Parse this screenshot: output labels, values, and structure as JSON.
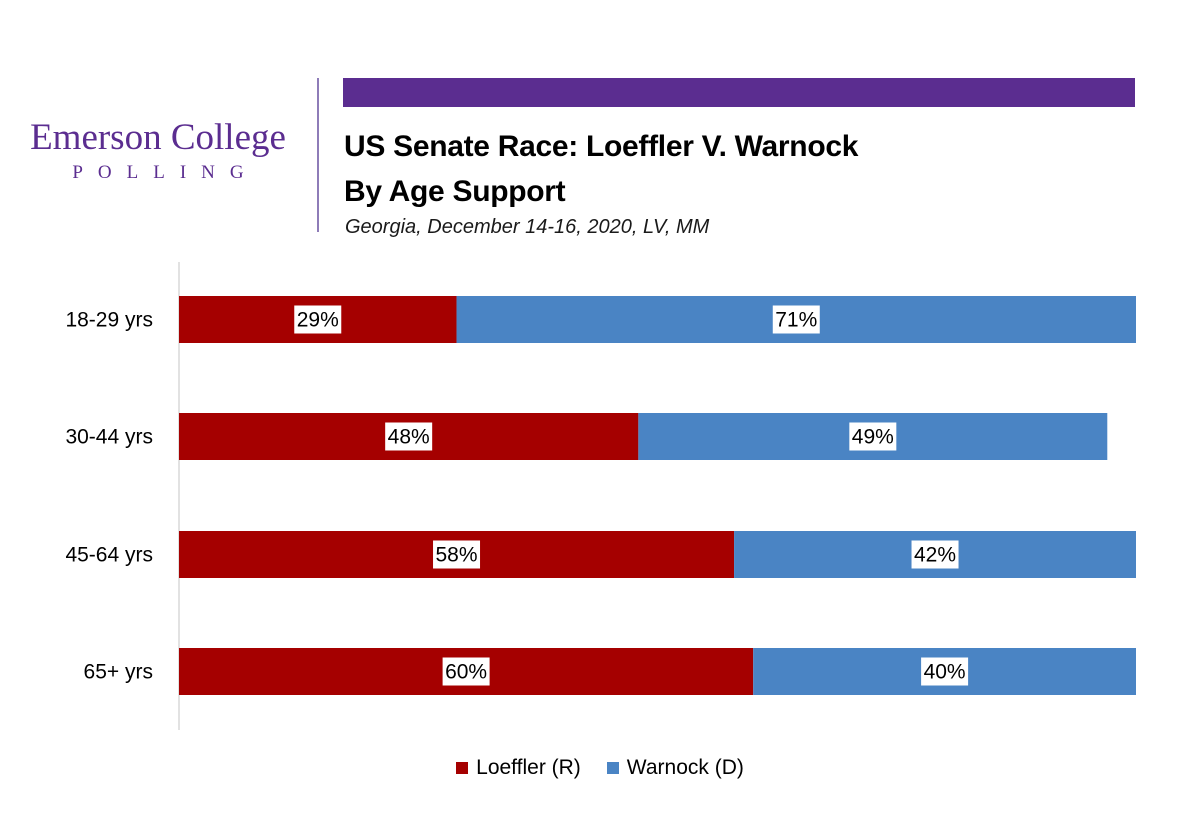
{
  "logo": {
    "name": "Emerson College",
    "sub": "POLLING"
  },
  "colors": {
    "brand_purple": "#5b2d90",
    "loeffler": "#a50000",
    "warnock": "#4a84c4"
  },
  "chart_data": {
    "type": "bar",
    "orientation": "horizontal",
    "stacked": true,
    "title": "US Senate Race: Loeffler V. Warnock",
    "title_line2": "By Age Support",
    "subtitle": "Georgia, December 14-16, 2020, LV, MM",
    "categories": [
      "18-29 yrs",
      "30-44 yrs",
      "45-64 yrs",
      "65+ yrs"
    ],
    "series": [
      {
        "name": "Loeffler (R)",
        "color": "#a50000",
        "values": [
          29,
          48,
          58,
          60
        ],
        "labels": [
          "29%",
          "48%",
          "58%",
          "60%"
        ]
      },
      {
        "name": "Warnock (D)",
        "color": "#4a84c4",
        "values": [
          71,
          49,
          42,
          40
        ],
        "labels": [
          "71%",
          "49%",
          "42%",
          "40%"
        ]
      }
    ],
    "xlim": [
      0,
      100
    ],
    "grid": false,
    "legend_position": "bottom"
  }
}
